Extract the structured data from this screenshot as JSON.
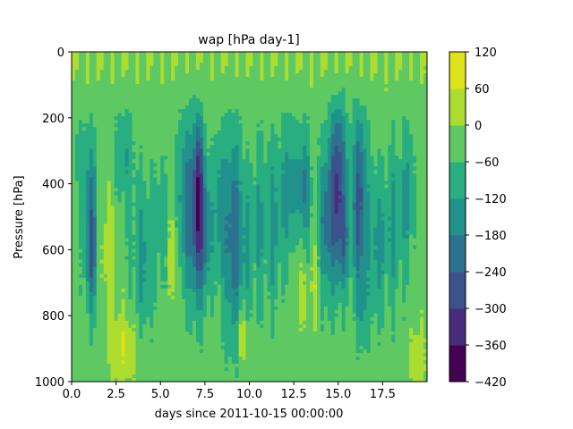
{
  "chart_data": {
    "type": "heatmap",
    "subtype": "filled-contour",
    "title": "wap [hPa day-1]",
    "xlabel": "days since 2011-10-15 00:00:00",
    "ylabel": "Pressure [hPa]",
    "xlim": [
      0,
      20
    ],
    "ylim": [
      1000,
      0
    ],
    "y_inverted": true,
    "xticks": [
      "0.0",
      "2.5",
      "5.0",
      "7.5",
      "10.0",
      "12.5",
      "15.0",
      "17.5"
    ],
    "xtick_values": [
      0,
      2.5,
      5,
      7.5,
      10,
      12.5,
      15,
      17.5
    ],
    "yticks": [
      "0",
      "200",
      "400",
      "600",
      "800",
      "1000"
    ],
    "ytick_values": [
      0,
      200,
      400,
      600,
      800,
      1000
    ],
    "colorbar": {
      "levels": [
        -420,
        -360,
        -300,
        -240,
        -180,
        -120,
        -60,
        0,
        60,
        120
      ],
      "labels": [
        "120",
        "60",
        "0",
        "−60",
        "−120",
        "−180",
        "−240",
        "−300",
        "−360",
        "−420"
      ],
      "colors": [
        "#440154",
        "#472d7b",
        "#3b528b",
        "#2c728e",
        "#21918c",
        "#28ae80",
        "#5ec962",
        "#addc30",
        "#dde318"
      ]
    },
    "field": {
      "background_level_index": 6,
      "features": [
        {
          "day": 1.1,
          "p": 520,
          "w_days": 0.35,
          "w_p": 230,
          "amp": -190
        },
        {
          "day": 1.1,
          "p": 650,
          "w_days": 0.25,
          "w_p": 120,
          "amp": -80
        },
        {
          "day": 0.5,
          "p": 330,
          "w_days": 0.4,
          "w_p": 120,
          "amp": -60
        },
        {
          "day": 2.0,
          "p": 600,
          "w_days": 0.4,
          "w_p": 180,
          "amp": 70
        },
        {
          "day": 2.9,
          "p": 900,
          "w_days": 0.8,
          "w_p": 110,
          "amp": 90
        },
        {
          "day": 3.0,
          "p": 320,
          "w_days": 0.5,
          "w_p": 150,
          "amp": -90
        },
        {
          "day": 4.0,
          "p": 620,
          "w_days": 0.6,
          "w_p": 220,
          "amp": -110
        },
        {
          "day": 5.0,
          "p": 500,
          "w_days": 0.35,
          "w_p": 200,
          "amp": -60
        },
        {
          "day": 5.8,
          "p": 620,
          "w_days": 0.35,
          "w_p": 150,
          "amp": 50
        },
        {
          "day": 6.4,
          "p": 470,
          "w_days": 0.4,
          "w_p": 260,
          "amp": -170
        },
        {
          "day": 7.1,
          "p": 480,
          "w_days": 0.35,
          "w_p": 260,
          "amp": -330
        },
        {
          "day": 7.2,
          "p": 330,
          "w_days": 0.2,
          "w_p": 90,
          "amp": -60
        },
        {
          "day": 7.6,
          "p": 540,
          "w_days": 0.3,
          "w_p": 180,
          "amp": -150
        },
        {
          "day": 8.3,
          "p": 470,
          "w_days": 0.3,
          "w_p": 220,
          "amp": -110
        },
        {
          "day": 9.1,
          "p": 560,
          "w_days": 0.55,
          "w_p": 300,
          "amp": -200
        },
        {
          "day": 9.6,
          "p": 860,
          "w_days": 0.25,
          "w_p": 90,
          "amp": 100
        },
        {
          "day": 9.9,
          "p": 580,
          "w_days": 0.3,
          "w_p": 200,
          "amp": -80
        },
        {
          "day": 10.5,
          "p": 520,
          "w_days": 0.25,
          "w_p": 250,
          "amp": -100
        },
        {
          "day": 11.3,
          "p": 520,
          "w_days": 0.5,
          "w_p": 250,
          "amp": -110
        },
        {
          "day": 12.3,
          "p": 420,
          "w_days": 0.5,
          "w_p": 200,
          "amp": -130
        },
        {
          "day": 12.9,
          "p": 650,
          "w_days": 0.4,
          "w_p": 200,
          "amp": 50
        },
        {
          "day": 13.1,
          "p": 430,
          "w_days": 0.3,
          "w_p": 180,
          "amp": -180
        },
        {
          "day": 13.7,
          "p": 700,
          "w_days": 0.25,
          "w_p": 120,
          "amp": 70
        },
        {
          "day": 14.3,
          "p": 520,
          "w_days": 0.4,
          "w_p": 230,
          "amp": -160
        },
        {
          "day": 15.0,
          "p": 420,
          "w_days": 0.45,
          "w_p": 260,
          "amp": -290
        },
        {
          "day": 15.4,
          "p": 600,
          "w_days": 0.3,
          "w_p": 120,
          "amp": -90
        },
        {
          "day": 16.2,
          "p": 460,
          "w_days": 0.4,
          "w_p": 260,
          "amp": -240
        },
        {
          "day": 16.4,
          "p": 780,
          "w_days": 0.3,
          "w_p": 130,
          "amp": -80
        },
        {
          "day": 17.2,
          "p": 580,
          "w_days": 0.45,
          "w_p": 220,
          "amp": -120
        },
        {
          "day": 18.1,
          "p": 520,
          "w_days": 0.4,
          "w_p": 240,
          "amp": -100
        },
        {
          "day": 18.9,
          "p": 440,
          "w_days": 0.35,
          "w_p": 220,
          "amp": -110
        },
        {
          "day": 19.5,
          "p": 930,
          "w_days": 0.4,
          "w_p": 100,
          "amp": 80
        },
        {
          "day": 0.2,
          "p": 950,
          "w_days": 0.3,
          "w_p": 80,
          "amp": 10
        }
      ],
      "upper_band": {
        "p_range": [
          0,
          200
        ],
        "level_index": 7,
        "stripes_every_days": 0.35
      }
    }
  }
}
